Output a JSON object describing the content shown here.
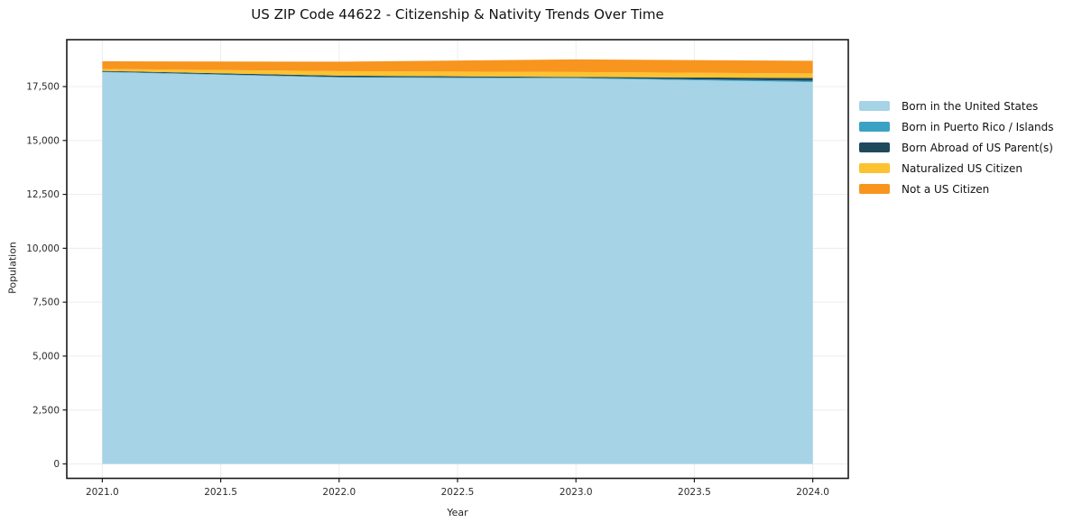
{
  "title": "US ZIP Code 44622 - Citizenship & Nativity Trends Over Time",
  "chart_data": {
    "type": "area",
    "stacked": true,
    "title": "US ZIP Code 44622 - Citizenship & Nativity Trends Over Time",
    "xlabel": "Year",
    "ylabel": "Population",
    "x": [
      2021,
      2022,
      2023,
      2024
    ],
    "series": [
      {
        "name": "Born in the United States",
        "color": "#a6d3e6",
        "values": [
          18170,
          17920,
          17880,
          17710
        ]
      },
      {
        "name": "Born in Puerto Rico / Islands",
        "color": "#3ba2c3",
        "values": [
          20,
          25,
          25,
          60
        ]
      },
      {
        "name": "Born Abroad of US Parent(s)",
        "color": "#20495c",
        "values": [
          40,
          60,
          40,
          130
        ]
      },
      {
        "name": "Naturalized US Citizen",
        "color": "#fcc230",
        "values": [
          85,
          210,
          230,
          210
        ]
      },
      {
        "name": "Not a US Citizen",
        "color": "#f7951f",
        "values": [
          355,
          440,
          585,
          585
        ]
      }
    ],
    "xticks": [
      "2021.0",
      "2021.5",
      "2022.0",
      "2022.5",
      "2023.0",
      "2023.5",
      "2024.0"
    ],
    "yticks": [
      "0",
      "2,500",
      "5,000",
      "7,500",
      "10,000",
      "12,500",
      "15,000",
      "17,500"
    ],
    "xlim": [
      2020.85,
      2024.15
    ],
    "ylim": [
      -670,
      19675
    ],
    "grid": true,
    "legend_position": "center-right",
    "axis_color": "#1a1a1a",
    "grid_color": "#ececec",
    "tick_label_color": "#2b2b2b"
  }
}
